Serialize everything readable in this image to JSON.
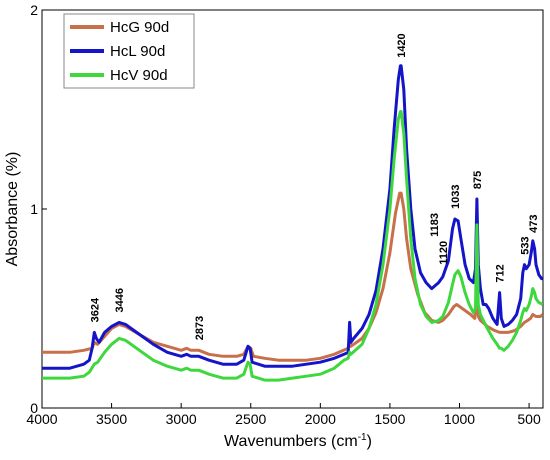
{
  "chart_data": {
    "type": "line",
    "xlabel": "Wavenumbers (cm",
    "xlabel_sup": "-1",
    "xlabel_close": ")",
    "ylabel": "Absorbance (%)",
    "xlim": [
      4000,
      400
    ],
    "ylim": [
      0,
      2
    ],
    "x_reversed": true,
    "xticks": [
      4000,
      3500,
      3000,
      2500,
      2000,
      1500,
      1000,
      500
    ],
    "xtick_labels": [
      "4000",
      "3500",
      "3000",
      "2500",
      "2000",
      "1500",
      "1000",
      "500"
    ],
    "yticks": [
      0,
      1,
      2
    ],
    "ytick_labels": [
      "0",
      "1",
      "2"
    ],
    "legend_position": "top-left",
    "series": [
      {
        "name": "HcG 90d",
        "color": "#c8704a",
        "points": [
          [
            4000,
            0.28
          ],
          [
            3800,
            0.28
          ],
          [
            3700,
            0.29
          ],
          [
            3640,
            0.3
          ],
          [
            3624,
            0.33
          ],
          [
            3600,
            0.32
          ],
          [
            3550,
            0.36
          ],
          [
            3500,
            0.4
          ],
          [
            3446,
            0.42
          ],
          [
            3400,
            0.41
          ],
          [
            3300,
            0.37
          ],
          [
            3200,
            0.33
          ],
          [
            3100,
            0.31
          ],
          [
            3000,
            0.29
          ],
          [
            2960,
            0.3
          ],
          [
            2930,
            0.29
          ],
          [
            2873,
            0.29
          ],
          [
            2800,
            0.27
          ],
          [
            2700,
            0.26
          ],
          [
            2600,
            0.26
          ],
          [
            2550,
            0.27
          ],
          [
            2520,
            0.31
          ],
          [
            2500,
            0.3
          ],
          [
            2480,
            0.26
          ],
          [
            2400,
            0.25
          ],
          [
            2300,
            0.24
          ],
          [
            2200,
            0.24
          ],
          [
            2100,
            0.24
          ],
          [
            2000,
            0.25
          ],
          [
            1900,
            0.27
          ],
          [
            1800,
            0.3
          ],
          [
            1790,
            0.34
          ],
          [
            1780,
            0.31
          ],
          [
            1700,
            0.35
          ],
          [
            1650,
            0.4
          ],
          [
            1600,
            0.48
          ],
          [
            1550,
            0.6
          ],
          [
            1500,
            0.78
          ],
          [
            1460,
            0.98
          ],
          [
            1430,
            1.08
          ],
          [
            1420,
            1.08
          ],
          [
            1400,
            1.0
          ],
          [
            1380,
            0.85
          ],
          [
            1350,
            0.7
          ],
          [
            1300,
            0.57
          ],
          [
            1250,
            0.48
          ],
          [
            1200,
            0.44
          ],
          [
            1150,
            0.43
          ],
          [
            1120,
            0.44
          ],
          [
            1080,
            0.47
          ],
          [
            1040,
            0.51
          ],
          [
            1020,
            0.52
          ],
          [
            1000,
            0.51
          ],
          [
            960,
            0.49
          ],
          [
            920,
            0.47
          ],
          [
            890,
            0.45
          ],
          [
            875,
            0.58
          ],
          [
            865,
            0.46
          ],
          [
            850,
            0.44
          ],
          [
            800,
            0.41
          ],
          [
            750,
            0.39
          ],
          [
            712,
            0.38
          ],
          [
            700,
            0.38
          ],
          [
            650,
            0.38
          ],
          [
            600,
            0.39
          ],
          [
            560,
            0.41
          ],
          [
            533,
            0.43
          ],
          [
            510,
            0.44
          ],
          [
            490,
            0.45
          ],
          [
            473,
            0.47
          ],
          [
            450,
            0.46
          ],
          [
            420,
            0.46
          ],
          [
            400,
            0.47
          ]
        ]
      },
      {
        "name": "HcL 90d",
        "color": "#1414c8",
        "points": [
          [
            4000,
            0.2
          ],
          [
            3900,
            0.2
          ],
          [
            3800,
            0.2
          ],
          [
            3700,
            0.22
          ],
          [
            3660,
            0.24
          ],
          [
            3640,
            0.3
          ],
          [
            3624,
            0.38
          ],
          [
            3610,
            0.35
          ],
          [
            3590,
            0.33
          ],
          [
            3550,
            0.38
          ],
          [
            3500,
            0.41
          ],
          [
            3446,
            0.43
          ],
          [
            3400,
            0.42
          ],
          [
            3300,
            0.37
          ],
          [
            3200,
            0.32
          ],
          [
            3100,
            0.28
          ],
          [
            3000,
            0.26
          ],
          [
            2960,
            0.27
          ],
          [
            2930,
            0.26
          ],
          [
            2873,
            0.26
          ],
          [
            2800,
            0.24
          ],
          [
            2700,
            0.22
          ],
          [
            2600,
            0.22
          ],
          [
            2550,
            0.24
          ],
          [
            2520,
            0.31
          ],
          [
            2505,
            0.3
          ],
          [
            2490,
            0.23
          ],
          [
            2400,
            0.21
          ],
          [
            2300,
            0.21
          ],
          [
            2200,
            0.21
          ],
          [
            2100,
            0.22
          ],
          [
            2000,
            0.23
          ],
          [
            1900,
            0.25
          ],
          [
            1830,
            0.27
          ],
          [
            1800,
            0.28
          ],
          [
            1790,
            0.43
          ],
          [
            1780,
            0.33
          ],
          [
            1760,
            0.35
          ],
          [
            1700,
            0.4
          ],
          [
            1650,
            0.47
          ],
          [
            1600,
            0.59
          ],
          [
            1550,
            0.8
          ],
          [
            1500,
            1.1
          ],
          [
            1470,
            1.4
          ],
          [
            1440,
            1.65
          ],
          [
            1425,
            1.72
          ],
          [
            1420,
            1.72
          ],
          [
            1400,
            1.6
          ],
          [
            1380,
            1.3
          ],
          [
            1350,
            1.0
          ],
          [
            1320,
            0.8
          ],
          [
            1280,
            0.68
          ],
          [
            1240,
            0.63
          ],
          [
            1200,
            0.6
          ],
          [
            1183,
            0.61
          ],
          [
            1150,
            0.63
          ],
          [
            1120,
            0.66
          ],
          [
            1080,
            0.74
          ],
          [
            1050,
            0.9
          ],
          [
            1033,
            0.95
          ],
          [
            1010,
            0.94
          ],
          [
            990,
            0.85
          ],
          [
            960,
            0.72
          ],
          [
            930,
            0.65
          ],
          [
            900,
            0.63
          ],
          [
            885,
            0.7
          ],
          [
            875,
            1.05
          ],
          [
            865,
            0.72
          ],
          [
            850,
            0.6
          ],
          [
            830,
            0.52
          ],
          [
            810,
            0.52
          ],
          [
            790,
            0.5
          ],
          [
            760,
            0.45
          ],
          [
            730,
            0.42
          ],
          [
            712,
            0.58
          ],
          [
            700,
            0.45
          ],
          [
            680,
            0.41
          ],
          [
            650,
            0.42
          ],
          [
            620,
            0.44
          ],
          [
            590,
            0.47
          ],
          [
            560,
            0.55
          ],
          [
            545,
            0.68
          ],
          [
            533,
            0.72
          ],
          [
            520,
            0.7
          ],
          [
            500,
            0.72
          ],
          [
            485,
            0.78
          ],
          [
            473,
            0.84
          ],
          [
            460,
            0.8
          ],
          [
            450,
            0.72
          ],
          [
            430,
            0.67
          ],
          [
            410,
            0.65
          ],
          [
            400,
            0.65
          ]
        ]
      },
      {
        "name": "HcV 90d",
        "color": "#3ed83e",
        "points": [
          [
            4000,
            0.15
          ],
          [
            3900,
            0.15
          ],
          [
            3800,
            0.15
          ],
          [
            3700,
            0.16
          ],
          [
            3660,
            0.18
          ],
          [
            3624,
            0.22
          ],
          [
            3600,
            0.23
          ],
          [
            3550,
            0.28
          ],
          [
            3500,
            0.32
          ],
          [
            3446,
            0.35
          ],
          [
            3400,
            0.34
          ],
          [
            3300,
            0.29
          ],
          [
            3200,
            0.24
          ],
          [
            3100,
            0.21
          ],
          [
            3000,
            0.19
          ],
          [
            2960,
            0.2
          ],
          [
            2930,
            0.19
          ],
          [
            2873,
            0.19
          ],
          [
            2800,
            0.17
          ],
          [
            2700,
            0.15
          ],
          [
            2600,
            0.15
          ],
          [
            2550,
            0.17
          ],
          [
            2520,
            0.23
          ],
          [
            2505,
            0.22
          ],
          [
            2490,
            0.16
          ],
          [
            2400,
            0.14
          ],
          [
            2300,
            0.14
          ],
          [
            2200,
            0.15
          ],
          [
            2100,
            0.16
          ],
          [
            2000,
            0.17
          ],
          [
            1900,
            0.2
          ],
          [
            1830,
            0.24
          ],
          [
            1800,
            0.25
          ],
          [
            1790,
            0.28
          ],
          [
            1780,
            0.27
          ],
          [
            1700,
            0.32
          ],
          [
            1650,
            0.4
          ],
          [
            1600,
            0.52
          ],
          [
            1550,
            0.72
          ],
          [
            1500,
            1.0
          ],
          [
            1470,
            1.25
          ],
          [
            1440,
            1.45
          ],
          [
            1425,
            1.49
          ],
          [
            1420,
            1.49
          ],
          [
            1400,
            1.38
          ],
          [
            1380,
            1.15
          ],
          [
            1350,
            0.85
          ],
          [
            1320,
            0.65
          ],
          [
            1280,
            0.52
          ],
          [
            1240,
            0.46
          ],
          [
            1200,
            0.43
          ],
          [
            1150,
            0.44
          ],
          [
            1120,
            0.46
          ],
          [
            1080,
            0.53
          ],
          [
            1050,
            0.62
          ],
          [
            1033,
            0.67
          ],
          [
            1010,
            0.69
          ],
          [
            990,
            0.66
          ],
          [
            960,
            0.58
          ],
          [
            930,
            0.52
          ],
          [
            900,
            0.48
          ],
          [
            885,
            0.5
          ],
          [
            875,
            0.92
          ],
          [
            865,
            0.52
          ],
          [
            850,
            0.47
          ],
          [
            800,
            0.4
          ],
          [
            760,
            0.35
          ],
          [
            730,
            0.32
          ],
          [
            712,
            0.3
          ],
          [
            700,
            0.3
          ],
          [
            680,
            0.29
          ],
          [
            650,
            0.31
          ],
          [
            620,
            0.34
          ],
          [
            590,
            0.38
          ],
          [
            560,
            0.44
          ],
          [
            545,
            0.48
          ],
          [
            533,
            0.5
          ],
          [
            520,
            0.49
          ],
          [
            500,
            0.52
          ],
          [
            485,
            0.56
          ],
          [
            473,
            0.6
          ],
          [
            460,
            0.58
          ],
          [
            450,
            0.55
          ],
          [
            430,
            0.53
          ],
          [
            400,
            0.52
          ]
        ]
      }
    ],
    "annotations": [
      {
        "text": "3624",
        "x": 3624,
        "y": 0.43
      },
      {
        "text": "3446",
        "x": 3446,
        "y": 0.48
      },
      {
        "text": "2873",
        "x": 2873,
        "y": 0.34
      },
      {
        "text": "1420",
        "x": 1420,
        "y": 1.76
      },
      {
        "text": "1120",
        "x": 1120,
        "y": 0.72
      },
      {
        "text": "1183",
        "x": 1183,
        "y": 0.86
      },
      {
        "text": "1033",
        "x": 1033,
        "y": 1.0
      },
      {
        "text": "875",
        "x": 875,
        "y": 1.1
      },
      {
        "text": "712",
        "x": 712,
        "y": 0.63
      },
      {
        "text": "533",
        "x": 533,
        "y": 0.77
      },
      {
        "text": "473",
        "x": 473,
        "y": 0.88
      }
    ]
  }
}
